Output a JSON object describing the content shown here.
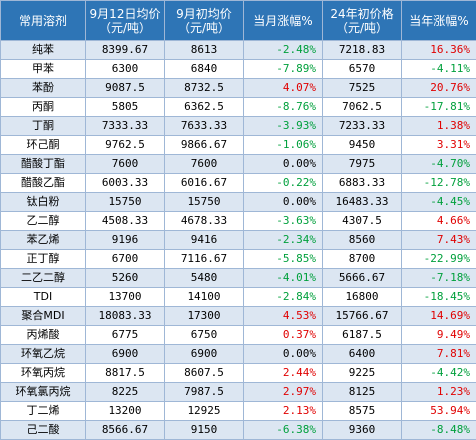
{
  "header": {
    "name": "常用溶剂",
    "price_sep12": "9月12日均价",
    "price_sep12_unit": "（元/吨）",
    "price_sep_start": "9月初均价",
    "price_sep_start_unit": "（元/吨）",
    "month_change": "当月涨幅%",
    "price_2024_start": "24年初价格",
    "price_2024_start_unit": "（元/吨）",
    "ytd_change": "当年涨幅%"
  },
  "colors": {
    "header_bg": "#2e75b6",
    "row_shade": "#dce6f2",
    "up": "#e00000",
    "down": "#00a03c"
  },
  "rows": [
    {
      "name": "纯苯",
      "sep12": "8399.67",
      "sep_start": "8613",
      "mtd": "-2.48%",
      "mtd_dir": "down",
      "y24": "7218.83",
      "ytd": "16.36%",
      "ytd_dir": "up"
    },
    {
      "name": "甲苯",
      "sep12": "6300",
      "sep_start": "6840",
      "mtd": "-7.89%",
      "mtd_dir": "down",
      "y24": "6570",
      "ytd": "-4.11%",
      "ytd_dir": "down"
    },
    {
      "name": "苯酚",
      "sep12": "9087.5",
      "sep_start": "8732.5",
      "mtd": "4.07%",
      "mtd_dir": "up",
      "y24": "7525",
      "ytd": "20.76%",
      "ytd_dir": "up"
    },
    {
      "name": "丙酮",
      "sep12": "5805",
      "sep_start": "6362.5",
      "mtd": "-8.76%",
      "mtd_dir": "down",
      "y24": "7062.5",
      "ytd": "-17.81%",
      "ytd_dir": "down"
    },
    {
      "name": "丁酮",
      "sep12": "7333.33",
      "sep_start": "7633.33",
      "mtd": "-3.93%",
      "mtd_dir": "down",
      "y24": "7233.33",
      "ytd": "1.38%",
      "ytd_dir": "up"
    },
    {
      "name": "环己酮",
      "sep12": "9762.5",
      "sep_start": "9866.67",
      "mtd": "-1.06%",
      "mtd_dir": "down",
      "y24": "9450",
      "ytd": "3.31%",
      "ytd_dir": "up"
    },
    {
      "name": "醋酸丁酯",
      "sep12": "7600",
      "sep_start": "7600",
      "mtd": "0.00%",
      "mtd_dir": "flat",
      "y24": "7975",
      "ytd": "-4.70%",
      "ytd_dir": "down"
    },
    {
      "name": "醋酸乙酯",
      "sep12": "6003.33",
      "sep_start": "6016.67",
      "mtd": "-0.22%",
      "mtd_dir": "down",
      "y24": "6883.33",
      "ytd": "-12.78%",
      "ytd_dir": "down"
    },
    {
      "name": "钛白粉",
      "sep12": "15750",
      "sep_start": "15750",
      "mtd": "0.00%",
      "mtd_dir": "flat",
      "y24": "16483.33",
      "ytd": "-4.45%",
      "ytd_dir": "down"
    },
    {
      "name": "乙二醇",
      "sep12": "4508.33",
      "sep_start": "4678.33",
      "mtd": "-3.63%",
      "mtd_dir": "down",
      "y24": "4307.5",
      "ytd": "4.66%",
      "ytd_dir": "up"
    },
    {
      "name": "苯乙烯",
      "sep12": "9196",
      "sep_start": "9416",
      "mtd": "-2.34%",
      "mtd_dir": "down",
      "y24": "8560",
      "ytd": "7.43%",
      "ytd_dir": "up"
    },
    {
      "name": "正丁醇",
      "sep12": "6700",
      "sep_start": "7116.67",
      "mtd": "-5.85%",
      "mtd_dir": "down",
      "y24": "8700",
      "ytd": "-22.99%",
      "ytd_dir": "down"
    },
    {
      "name": "二乙二醇",
      "sep12": "5260",
      "sep_start": "5480",
      "mtd": "-4.01%",
      "mtd_dir": "down",
      "y24": "5666.67",
      "ytd": "-7.18%",
      "ytd_dir": "down"
    },
    {
      "name": "TDI",
      "sep12": "13700",
      "sep_start": "14100",
      "mtd": "-2.84%",
      "mtd_dir": "down",
      "y24": "16800",
      "ytd": "-18.45%",
      "ytd_dir": "down"
    },
    {
      "name": "聚合MDI",
      "sep12": "18083.33",
      "sep_start": "17300",
      "mtd": "4.53%",
      "mtd_dir": "up",
      "y24": "15766.67",
      "ytd": "14.69%",
      "ytd_dir": "up"
    },
    {
      "name": "丙烯酸",
      "sep12": "6775",
      "sep_start": "6750",
      "mtd": "0.37%",
      "mtd_dir": "up",
      "y24": "6187.5",
      "ytd": "9.49%",
      "ytd_dir": "up"
    },
    {
      "name": "环氧乙烷",
      "sep12": "6900",
      "sep_start": "6900",
      "mtd": "0.00%",
      "mtd_dir": "flat",
      "y24": "6400",
      "ytd": "7.81%",
      "ytd_dir": "up"
    },
    {
      "name": "环氧丙烷",
      "sep12": "8817.5",
      "sep_start": "8607.5",
      "mtd": "2.44%",
      "mtd_dir": "up",
      "y24": "9225",
      "ytd": "-4.42%",
      "ytd_dir": "down"
    },
    {
      "name": "环氧氯丙烷",
      "sep12": "8225",
      "sep_start": "7987.5",
      "mtd": "2.97%",
      "mtd_dir": "up",
      "y24": "8125",
      "ytd": "1.23%",
      "ytd_dir": "up"
    },
    {
      "name": "丁二烯",
      "sep12": "13200",
      "sep_start": "12925",
      "mtd": "2.13%",
      "mtd_dir": "up",
      "y24": "8575",
      "ytd": "53.94%",
      "ytd_dir": "up"
    },
    {
      "name": "己二酸",
      "sep12": "8566.67",
      "sep_start": "9150",
      "mtd": "-6.38%",
      "mtd_dir": "down",
      "y24": "9360",
      "ytd": "-8.48%",
      "ytd_dir": "down"
    }
  ]
}
